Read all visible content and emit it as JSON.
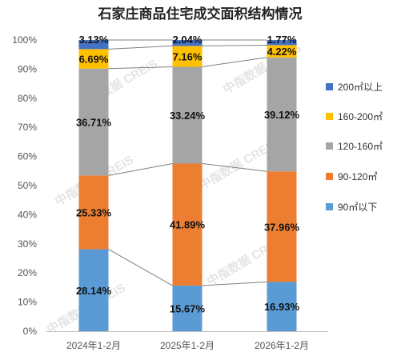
{
  "chart_data": {
    "type": "bar",
    "stacked": true,
    "title": "石家庄商品住宅成交面积结构情况",
    "categories": [
      "2024年1-2月",
      "2025年1-2月",
      "2026年1-2月"
    ],
    "series": [
      {
        "name": "90㎡以下",
        "color": "#5b9bd5",
        "values": [
          28.14,
          15.67,
          16.93
        ],
        "labels": [
          "28.14%",
          "15.67%",
          "16.93%"
        ]
      },
      {
        "name": "90-120㎡",
        "color": "#ed7d31",
        "values": [
          25.33,
          41.89,
          37.96
        ],
        "labels": [
          "25.33%",
          "41.89%",
          "37.96%"
        ]
      },
      {
        "name": "120-160㎡",
        "color": "#a5a5a5",
        "values": [
          36.71,
          33.24,
          39.12
        ],
        "labels": [
          "36.71%",
          "33.24%",
          "39.12%"
        ]
      },
      {
        "name": "160-200㎡",
        "color": "#ffc000",
        "values": [
          6.69,
          7.16,
          4.22
        ],
        "labels": [
          "6.69%",
          "7.16%",
          "4.22%"
        ]
      },
      {
        "name": "200㎡以上",
        "color": "#4472c4",
        "values": [
          3.13,
          2.04,
          1.77
        ],
        "labels": [
          "3.13%",
          "2.04%",
          "1.77%"
        ]
      }
    ],
    "ylim": [
      0,
      100
    ],
    "yticks": [
      "0%",
      "10%",
      "20%",
      "30%",
      "40%",
      "50%",
      "60%",
      "70%",
      "80%",
      "90%",
      "100%"
    ],
    "legend_position": "right",
    "grid": false,
    "series_lines": true
  },
  "watermark": {
    "texts": [
      "中指数据 CREIS",
      "中指数据 CREIS",
      "中指数据 CREIS",
      "中指数据 CREIS",
      "中指数据 CREIS",
      "中指数据 CREIS"
    ]
  }
}
